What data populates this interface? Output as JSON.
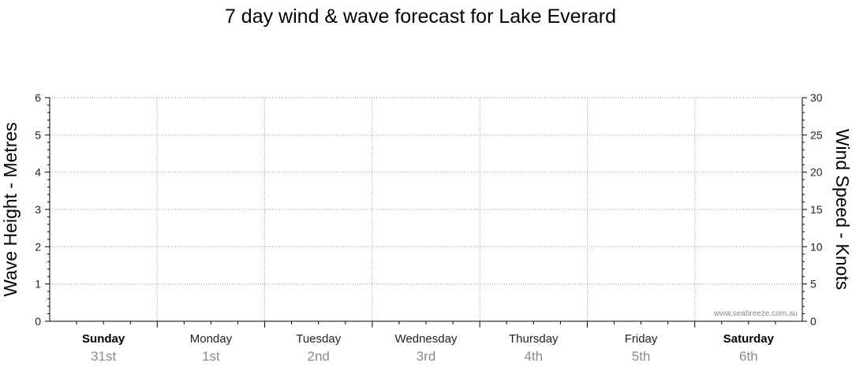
{
  "chart_data": {
    "type": "line",
    "title": "7 day wind & wave forecast for Lake Everard",
    "ylabel_left": "Wave Height - Metres",
    "ylabel_right": "Wind Speed - Knots",
    "ylim_left": [
      0,
      6
    ],
    "ylim_right": [
      0,
      30
    ],
    "yticks_left": [
      "0",
      "1",
      "2",
      "3",
      "4",
      "5",
      "6"
    ],
    "yticks_right": [
      "0",
      "5",
      "10",
      "15",
      "20",
      "25",
      "30"
    ],
    "grid": true,
    "days": [
      {
        "name": "Sunday",
        "date": "31st",
        "bold": true
      },
      {
        "name": "Monday",
        "date": "1st",
        "bold": false
      },
      {
        "name": "Tuesday",
        "date": "2nd",
        "bold": false
      },
      {
        "name": "Wednesday",
        "date": "3rd",
        "bold": false
      },
      {
        "name": "Thursday",
        "date": "4th",
        "bold": false
      },
      {
        "name": "Friday",
        "date": "5th",
        "bold": false
      },
      {
        "name": "Saturday",
        "date": "6th",
        "bold": true
      }
    ],
    "series": [],
    "watermark": "www.seabreeze.com.au"
  }
}
